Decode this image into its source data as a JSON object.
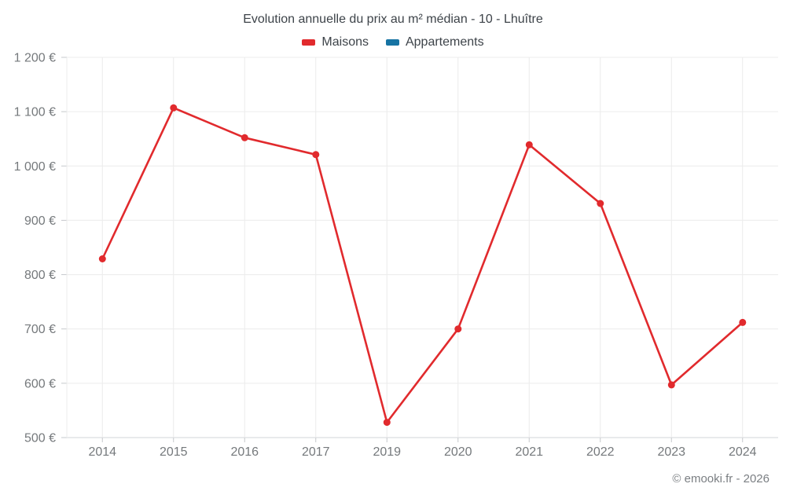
{
  "header": {
    "title": "Evolution annuelle du prix au m² médian - 10 - Lhuître",
    "legend": {
      "items": [
        {
          "label": "Maisons",
          "color": "#e12a2d"
        },
        {
          "label": "Appartements",
          "color": "#1673a3"
        }
      ]
    }
  },
  "footer": {
    "text": "© emooki.fr - 2026"
  },
  "chart_data": {
    "type": "line",
    "title": "Evolution annuelle du prix au m² médian - 10 - Lhuître",
    "categories": [
      "2014",
      "2015",
      "2016",
      "2017",
      "2019",
      "2020",
      "2021",
      "2022",
      "2023",
      "2024"
    ],
    "series": [
      {
        "name": "Maisons",
        "color": "#e12a2d",
        "values": [
          829,
          1107,
          1052,
          1021,
          528,
          700,
          1039,
          931,
          597,
          712
        ]
      },
      {
        "name": "Appartements",
        "color": "#1673a3",
        "values": []
      }
    ],
    "xlabel": "",
    "ylabel": "",
    "ylim": [
      500,
      1200
    ],
    "ytick_step": 100,
    "yticks": [
      {
        "value": 1200,
        "label": "1 200 €"
      },
      {
        "value": 1100,
        "label": "1 100 €"
      },
      {
        "value": 1000,
        "label": "1 000 €"
      },
      {
        "value": 900,
        "label": "900 €"
      },
      {
        "value": 800,
        "label": "800 €"
      },
      {
        "value": 700,
        "label": "700 €"
      },
      {
        "value": 600,
        "label": "600 €"
      },
      {
        "value": 500,
        "label": "500 €"
      }
    ],
    "grid": true,
    "legend_position": "top",
    "marker": "circle"
  }
}
